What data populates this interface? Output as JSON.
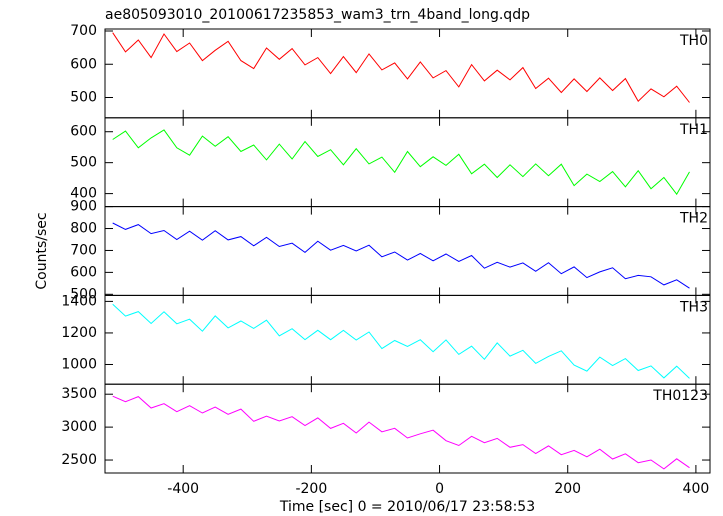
{
  "chart_data": [
    {
      "type": "line",
      "title": "ae805093010_20100617235853_wam3_trn_4band_long.qdp",
      "label": "TH0",
      "color": "#ff0000",
      "x": [
        -510,
        -490,
        -470,
        -450,
        -430,
        -410,
        -390,
        -370,
        -350,
        -330,
        -310,
        -290,
        -270,
        -250,
        -230,
        -210,
        -190,
        -170,
        -150,
        -130,
        -110,
        -90,
        -70,
        -50,
        -30,
        -10,
        10,
        30,
        50,
        70,
        90,
        110,
        130,
        150,
        170,
        190,
        210,
        230,
        250,
        270,
        290,
        310,
        330,
        350,
        370,
        390
      ],
      "values": [
        695,
        637,
        673,
        620,
        691,
        638,
        664,
        611,
        642,
        669,
        611,
        587,
        649,
        615,
        647,
        598,
        620,
        572,
        623,
        575,
        631,
        583,
        604,
        556,
        607,
        559,
        581,
        532,
        599,
        550,
        582,
        553,
        590,
        527,
        558,
        515,
        556,
        518,
        559,
        521,
        557,
        489,
        526,
        502,
        534,
        485
      ],
      "xlim": [
        -522,
        422
      ],
      "ylim": [
        439,
        706
      ],
      "yticks": [
        500,
        600,
        700
      ]
    },
    {
      "type": "line",
      "label": "TH1",
      "color": "#00ff00",
      "x": [
        -510,
        -490,
        -470,
        -450,
        -430,
        -410,
        -390,
        -370,
        -350,
        -330,
        -310,
        -290,
        -270,
        -250,
        -230,
        -210,
        -190,
        -170,
        -150,
        -130,
        -110,
        -90,
        -70,
        -50,
        -30,
        -10,
        10,
        30,
        50,
        70,
        90,
        110,
        130,
        150,
        170,
        190,
        210,
        230,
        250,
        270,
        290,
        310,
        330,
        350,
        370,
        390
      ],
      "values": [
        575,
        602,
        548,
        580,
        606,
        548,
        524,
        586,
        553,
        584,
        536,
        557,
        509,
        560,
        512,
        568,
        520,
        542,
        493,
        545,
        496,
        518,
        469,
        536,
        487,
        519,
        491,
        527,
        464,
        495,
        452,
        493,
        455,
        496,
        458,
        495,
        426,
        463,
        439,
        471,
        422,
        474,
        416,
        452,
        398,
        470
      ],
      "xlim": [
        -522,
        422
      ],
      "ylim": [
        358,
        645
      ],
      "yticks": [
        400,
        500,
        600
      ]
    },
    {
      "type": "line",
      "label": "TH2",
      "color": "#0000ff",
      "ylabel": "Counts/sec",
      "x": [
        -510,
        -490,
        -470,
        -450,
        -430,
        -410,
        -390,
        -370,
        -350,
        -330,
        -310,
        -290,
        -270,
        -250,
        -230,
        -210,
        -190,
        -170,
        -150,
        -130,
        -110,
        -90,
        -70,
        -50,
        -30,
        -10,
        10,
        30,
        50,
        70,
        90,
        110,
        130,
        150,
        170,
        190,
        210,
        230,
        250,
        270,
        290,
        310,
        330,
        350,
        370,
        390
      ],
      "values": [
        825,
        796,
        818,
        777,
        791,
        750,
        788,
        747,
        790,
        748,
        763,
        721,
        760,
        718,
        733,
        691,
        742,
        701,
        723,
        698,
        724,
        671,
        693,
        656,
        686,
        653,
        684,
        650,
        677,
        619,
        646,
        624,
        643,
        605,
        644,
        594,
        625,
        576,
        602,
        621,
        571,
        586,
        580,
        543,
        566,
        528
      ],
      "xlim": [
        -522,
        422
      ],
      "ylim": [
        495,
        900
      ],
      "yticks": [
        500,
        600,
        700,
        800,
        900
      ]
    },
    {
      "type": "line",
      "label": "TH3",
      "color": "#00ffff",
      "x": [
        -510,
        -490,
        -470,
        -450,
        -430,
        -410,
        -390,
        -370,
        -350,
        -330,
        -310,
        -290,
        -270,
        -250,
        -230,
        -210,
        -190,
        -170,
        -150,
        -130,
        -110,
        -90,
        -70,
        -50,
        -30,
        -10,
        10,
        30,
        50,
        70,
        90,
        110,
        130,
        150,
        170,
        190,
        210,
        230,
        250,
        270,
        290,
        310,
        330,
        350,
        370,
        390
      ],
      "values": [
        1382,
        1307,
        1335,
        1260,
        1334,
        1258,
        1287,
        1211,
        1308,
        1232,
        1276,
        1229,
        1281,
        1182,
        1227,
        1158,
        1217,
        1157,
        1216,
        1155,
        1206,
        1101,
        1152,
        1114,
        1157,
        1081,
        1156,
        1064,
        1116,
        1033,
        1137,
        1053,
        1090,
        1007,
        1051,
        1087,
        996,
        958,
        1047,
        993,
        1037,
        962,
        991,
        915,
        989,
        912
      ],
      "xlim": [
        -522,
        422
      ],
      "ylim": [
        875,
        1438
      ],
      "yticks": [
        1000,
        1200,
        1400
      ]
    },
    {
      "type": "line",
      "label": "TH0123",
      "color": "#ff00ff",
      "xlabel": "Time [sec] 0 = 2010/06/17 23:58:53",
      "x": [
        -510,
        -490,
        -470,
        -450,
        -430,
        -410,
        -390,
        -370,
        -350,
        -330,
        -310,
        -290,
        -270,
        -250,
        -230,
        -210,
        -190,
        -170,
        -150,
        -130,
        -110,
        -90,
        -70,
        -50,
        -30,
        -10,
        10,
        30,
        50,
        70,
        90,
        110,
        130,
        150,
        170,
        190,
        210,
        230,
        250,
        270,
        290,
        310,
        330,
        350,
        370,
        390
      ],
      "values": [
        3470,
        3386,
        3464,
        3291,
        3356,
        3234,
        3325,
        3215,
        3304,
        3195,
        3273,
        3088,
        3166,
        3093,
        3159,
        3025,
        3140,
        2981,
        3058,
        2910,
        3076,
        2929,
        2982,
        2834,
        2899,
        2953,
        2793,
        2721,
        2860,
        2764,
        2829,
        2694,
        2735,
        2599,
        2715,
        2581,
        2646,
        2549,
        2664,
        2516,
        2594,
        2460,
        2500,
        2365,
        2518,
        2383
      ],
      "xlim": [
        -522,
        422
      ],
      "ylim": [
        2303,
        3652
      ],
      "yticks": [
        2500,
        3000,
        3500
      ],
      "xticks": [
        -400,
        -200,
        0,
        200,
        400
      ]
    }
  ]
}
